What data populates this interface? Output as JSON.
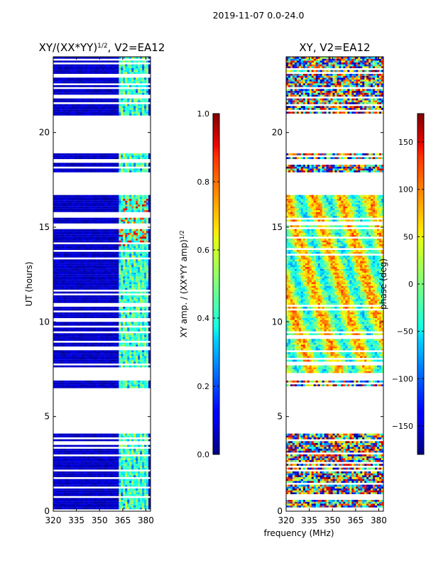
{
  "figure": {
    "suptitle": "2019-11-07 0.0-24.0",
    "xlabel": "frequency (MHz)"
  },
  "chart_data": [
    {
      "type": "heatmap",
      "title": "XY/(XX*YY)^(1/2), V2=EA12",
      "title_main": "XY/(XX*YY)",
      "title_exp": "1/2",
      "title_suffix": ", V2=EA12",
      "ylabel": "UT (hours)",
      "xlim": [
        320,
        383
      ],
      "ylim": [
        0,
        24
      ],
      "xticks": [
        320,
        335,
        350,
        365,
        380
      ],
      "yticks": [
        0,
        5,
        10,
        15,
        20
      ],
      "colorbar": {
        "label": "XY amp. / (XX*YY amp)^(1/2)",
        "label_main": "XY amp. / (XX*YY amp)",
        "label_exp": "1/2",
        "range": [
          0.0,
          1.0
        ],
        "ticks": [
          "0.0",
          "0.2",
          "0.4",
          "0.6",
          "0.8",
          "1.0"
        ],
        "colormap": "jet"
      },
      "data_gaps_hours": [
        [
          4.1,
          6.5
        ],
        [
          6.9,
          7.3
        ],
        [
          16.7,
          17.9
        ],
        [
          18.4,
          18.6
        ],
        [
          18.9,
          20.9
        ]
      ],
      "bright_band_mhz": [
        362,
        381
      ]
    },
    {
      "type": "heatmap",
      "title": "XY, V2=EA12",
      "xlim": [
        320,
        383
      ],
      "ylim": [
        0,
        24
      ],
      "xticks": [
        320,
        335,
        350,
        365,
        380
      ],
      "yticks": [
        0,
        5,
        10,
        15,
        20
      ],
      "colorbar": {
        "label": "phase (deg)",
        "range": [
          -180,
          180
        ],
        "ticks": [
          "150",
          "100",
          "50",
          "0",
          "−50",
          "−100",
          "−150"
        ],
        "tick_values": [
          150,
          100,
          50,
          0,
          -50,
          -100,
          -150
        ],
        "colormap": "jet"
      },
      "data_gaps_hours": [
        [
          4.1,
          6.5
        ],
        [
          6.9,
          7.3
        ],
        [
          16.7,
          17.9
        ],
        [
          18.4,
          18.6
        ],
        [
          18.9,
          20.9
        ]
      ]
    }
  ]
}
